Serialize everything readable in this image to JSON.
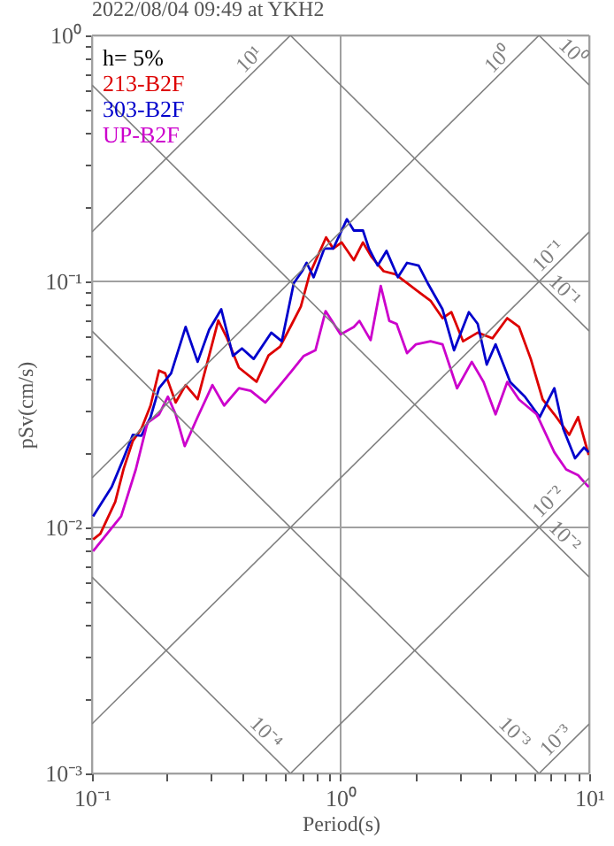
{
  "chart_data": {
    "type": "line",
    "title": "2022/08/04 09:49 at YKH2",
    "xlabel": "Period(s)",
    "ylabel": "pSv(cm/s)",
    "log": "xy",
    "grid": true,
    "legend": "top left",
    "xlim": [
      0.1,
      10
    ],
    "ylim": [
      0.001,
      1
    ],
    "xticks": [
      {
        "value": 0.1,
        "label": "10⁻¹"
      },
      {
        "value": 0.2,
        "label": null
      },
      {
        "value": 0.3,
        "label": null
      },
      {
        "value": 0.4,
        "label": null
      },
      {
        "value": 0.5,
        "label": null
      },
      {
        "value": 0.6,
        "label": null
      },
      {
        "value": 0.7,
        "label": null
      },
      {
        "value": 0.8,
        "label": null
      },
      {
        "value": 0.9,
        "label": null
      },
      {
        "value": 1,
        "label": "10⁰"
      },
      {
        "value": 2,
        "label": null
      },
      {
        "value": 3,
        "label": null
      },
      {
        "value": 4,
        "label": null
      },
      {
        "value": 5,
        "label": null
      },
      {
        "value": 6,
        "label": null
      },
      {
        "value": 7,
        "label": null
      },
      {
        "value": 8,
        "label": null
      },
      {
        "value": 9,
        "label": null
      },
      {
        "value": 10,
        "label": "10¹"
      }
    ],
    "yticks": [
      {
        "value": 0.001,
        "label": "10⁻³"
      },
      {
        "value": 0.002,
        "label": null
      },
      {
        "value": 0.003,
        "label": null
      },
      {
        "value": 0.004,
        "label": null
      },
      {
        "value": 0.005,
        "label": null
      },
      {
        "value": 0.006,
        "label": null
      },
      {
        "value": 0.007,
        "label": null
      },
      {
        "value": 0.008,
        "label": null
      },
      {
        "value": 0.009,
        "label": null
      },
      {
        "value": 0.01,
        "label": "10⁻²"
      },
      {
        "value": 0.02,
        "label": null
      },
      {
        "value": 0.03,
        "label": null
      },
      {
        "value": 0.04,
        "label": null
      },
      {
        "value": 0.05,
        "label": null
      },
      {
        "value": 0.06,
        "label": null
      },
      {
        "value": 0.07,
        "label": null
      },
      {
        "value": 0.08,
        "label": null
      },
      {
        "value": 0.09,
        "label": null
      },
      {
        "value": 0.1,
        "label": "10⁻¹"
      },
      {
        "value": 0.2,
        "label": null
      },
      {
        "value": 0.3,
        "label": null
      },
      {
        "value": 0.4,
        "label": null
      },
      {
        "value": 0.5,
        "label": null
      },
      {
        "value": 0.6,
        "label": null
      },
      {
        "value": 0.7,
        "label": null
      },
      {
        "value": 0.8,
        "label": null
      },
      {
        "value": 0.9,
        "label": null
      },
      {
        "value": 1,
        "label": "10⁰"
      }
    ],
    "annotations": [
      "h= 5%"
    ],
    "series": [
      {
        "name": "213-B2F",
        "color": "#dd0000",
        "x": [
          0.101,
          0.108,
          0.124,
          0.134,
          0.146,
          0.158,
          0.172,
          0.186,
          0.197,
          0.217,
          0.238,
          0.266,
          0.296,
          0.322,
          0.349,
          0.39,
          0.459,
          0.513,
          0.571,
          0.637,
          0.692,
          0.75,
          0.874,
          0.934,
          1.01,
          1.13,
          1.23,
          1.33,
          1.49,
          1.66,
          1.85,
          2.06,
          2.3,
          2.57,
          2.79,
          3.11,
          3.56,
          4.08,
          4.68,
          5.22,
          5.82,
          6.5,
          7.24,
          8.31,
          9.02,
          9.95
        ],
        "values": [
          0.00893,
          0.00942,
          0.0127,
          0.0173,
          0.0225,
          0.0252,
          0.0313,
          0.0434,
          0.0423,
          0.0322,
          0.0379,
          0.0332,
          0.05,
          0.0694,
          0.0589,
          0.0446,
          0.0391,
          0.05,
          0.0543,
          0.0672,
          0.0791,
          0.107,
          0.151,
          0.136,
          0.144,
          0.122,
          0.144,
          0.126,
          0.11,
          0.107,
          0.0984,
          0.0906,
          0.0835,
          0.0709,
          0.075,
          0.0571,
          0.0619,
          0.0587,
          0.0709,
          0.0653,
          0.0484,
          0.0331,
          0.0288,
          0.0238,
          0.0281,
          0.0197
        ]
      },
      {
        "name": "303-B2F",
        "color": "#0000cc",
        "x": [
          0.101,
          0.12,
          0.134,
          0.146,
          0.158,
          0.172,
          0.186,
          0.208,
          0.238,
          0.266,
          0.296,
          0.331,
          0.369,
          0.401,
          0.447,
          0.526,
          0.58,
          0.648,
          0.7,
          0.73,
          0.779,
          0.86,
          0.934,
          1.06,
          1.13,
          1.23,
          1.3,
          1.41,
          1.53,
          1.7,
          1.85,
          2.06,
          2.24,
          2.57,
          2.86,
          3.28,
          3.56,
          3.87,
          4.2,
          4.81,
          5.51,
          6.32,
          7.24,
          7.86,
          8.77,
          9.52,
          9.95
        ],
        "values": [
          0.0111,
          0.0146,
          0.0191,
          0.0238,
          0.0236,
          0.0281,
          0.0368,
          0.0423,
          0.0653,
          0.0471,
          0.0637,
          0.077,
          0.0498,
          0.0534,
          0.0484,
          0.0619,
          0.0571,
          0.0984,
          0.11,
          0.119,
          0.104,
          0.136,
          0.136,
          0.179,
          0.161,
          0.161,
          0.136,
          0.116,
          0.133,
          0.104,
          0.119,
          0.116,
          0.0984,
          0.077,
          0.0525,
          0.075,
          0.0672,
          0.0459,
          0.0555,
          0.039,
          0.034,
          0.0281,
          0.0368,
          0.0252,
          0.0191,
          0.0211,
          0.0202
        ]
      },
      {
        "name": "UP-B2F",
        "color": "#cc00cc",
        "x": [
          0.101,
          0.12,
          0.131,
          0.15,
          0.167,
          0.186,
          0.202,
          0.217,
          0.236,
          0.266,
          0.305,
          0.34,
          0.39,
          0.435,
          0.498,
          0.571,
          0.637,
          0.711,
          0.792,
          0.87,
          1.0,
          1.13,
          1.19,
          1.32,
          1.45,
          1.57,
          1.68,
          1.85,
          2.01,
          2.3,
          2.57,
          2.94,
          3.37,
          3.76,
          4.2,
          4.68,
          5.22,
          6.15,
          7.24,
          8.08,
          9.02,
          9.95
        ],
        "values": [
          0.008,
          0.00995,
          0.0111,
          0.0172,
          0.0266,
          0.0288,
          0.034,
          0.0288,
          0.0214,
          0.0281,
          0.0379,
          0.0313,
          0.0368,
          0.0359,
          0.0322,
          0.0379,
          0.0434,
          0.0498,
          0.0525,
          0.0757,
          0.0609,
          0.0653,
          0.0691,
          0.0577,
          0.0958,
          0.0691,
          0.0672,
          0.0511,
          0.0555,
          0.0571,
          0.0555,
          0.0368,
          0.0471,
          0.039,
          0.0288,
          0.039,
          0.0331,
          0.0288,
          0.0202,
          0.0172,
          0.0163,
          0.0146
        ]
      },
      {
        "name": "10¹",
        "color": "#808080",
        "x": [
          0.1,
          0.628
        ],
        "values": [
          0.159,
          1
        ]
      },
      {
        "name": "10⁰",
        "color": "#808080",
        "x": [
          0.1,
          6.28
        ],
        "values": [
          0.0159,
          1
        ]
      },
      {
        "name": "10⁻¹",
        "color": "#808080",
        "x": [
          0.1,
          10
        ],
        "values": [
          0.00159,
          0.159
        ]
      },
      {
        "name": "10⁻²",
        "color": "#808080",
        "x": [
          0.628,
          10
        ],
        "values": [
          0.001,
          0.0159
        ]
      },
      {
        "name": "10⁻³",
        "color": "#808080",
        "x": [
          6.28,
          10
        ],
        "values": [
          0.001,
          0.00159
        ]
      },
      {
        "name": "10⁰",
        "color": "#808080",
        "x": [
          6.28,
          10
        ],
        "values": [
          1,
          0.628
        ]
      },
      {
        "name": "10⁻¹",
        "color": "#808080",
        "x": [
          0.628,
          10
        ],
        "values": [
          1,
          0.0628
        ]
      },
      {
        "name": "10⁻²",
        "color": "#808080",
        "x": [
          0.1,
          10
        ],
        "values": [
          0.628,
          0.00628
        ]
      },
      {
        "name": "10⁻³",
        "color": "#808080",
        "x": [
          0.1,
          6.28
        ],
        "values": [
          0.0628,
          0.001
        ]
      },
      {
        "name": "10⁻⁴",
        "color": "#808080",
        "x": [
          0.1,
          0.628
        ],
        "values": [
          0.00628,
          0.001
        ]
      }
    ]
  }
}
